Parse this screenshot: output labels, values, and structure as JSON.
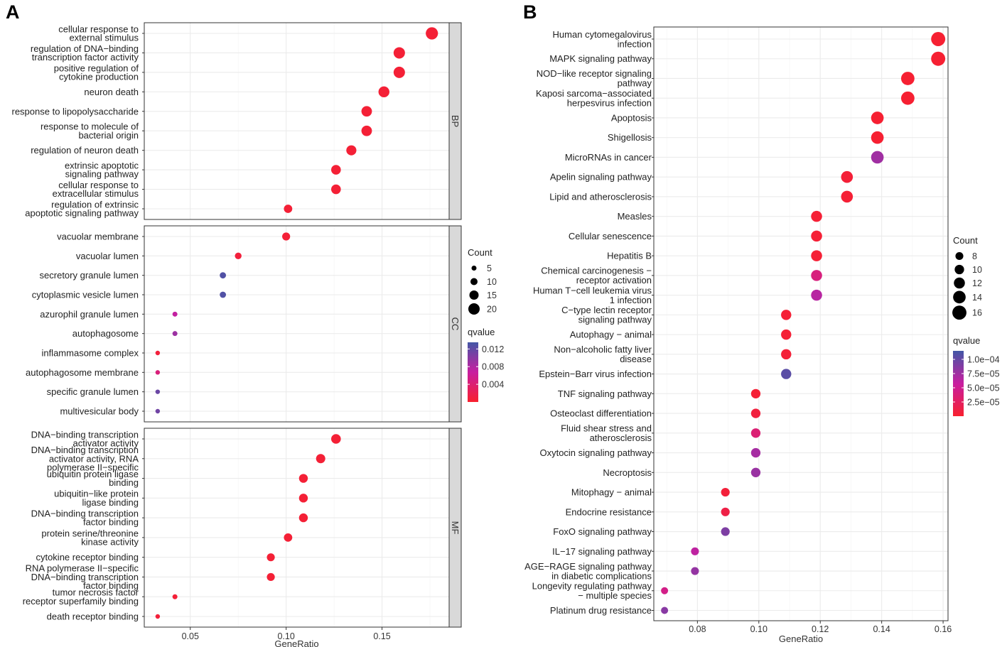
{
  "panels": {
    "A": {
      "letter": "A"
    },
    "B": {
      "letter": "B"
    }
  },
  "chart_data": [
    {
      "type": "scatter",
      "panel": "A",
      "title": "",
      "xlabel": "GeneRatio",
      "ylabel": "",
      "xlim": [
        0.026,
        0.185
      ],
      "xticks": [
        0.05,
        0.1,
        0.15
      ],
      "xtick_labels": [
        "0.05",
        "0.10",
        "0.15"
      ],
      "facets": [
        {
          "name": "BP",
          "terms": [
            {
              "label": [
                "cellular response to",
                "external stimulus"
              ],
              "x": 0.176,
              "count": 22,
              "q": 0.0005
            },
            {
              "label": [
                "regulation of DNA−binding",
                "transcription factor activity"
              ],
              "x": 0.159,
              "count": 20,
              "q": 0.0005
            },
            {
              "label": [
                "positive regulation of",
                "cytokine production"
              ],
              "x": 0.159,
              "count": 20,
              "q": 0.0005
            },
            {
              "label": [
                "neuron death"
              ],
              "x": 0.151,
              "count": 19,
              "q": 0.0005
            },
            {
              "label": [
                "response to lipopolysaccharide"
              ],
              "x": 0.142,
              "count": 18,
              "q": 0.0005
            },
            {
              "label": [
                "response to molecule of",
                "bacterial origin"
              ],
              "x": 0.142,
              "count": 18,
              "q": 0.0005
            },
            {
              "label": [
                "regulation of neuron death"
              ],
              "x": 0.134,
              "count": 17,
              "q": 0.0005
            },
            {
              "label": [
                "extrinsic apoptotic",
                "signaling pathway"
              ],
              "x": 0.126,
              "count": 16,
              "q": 0.0005
            },
            {
              "label": [
                "cellular response to",
                "extracellular stimulus"
              ],
              "x": 0.126,
              "count": 16,
              "q": 0.0005
            },
            {
              "label": [
                "regulation of extrinsic",
                "apoptotic signaling pathway"
              ],
              "x": 0.101,
              "count": 13,
              "q": 0.0005
            }
          ]
        },
        {
          "name": "CC",
          "terms": [
            {
              "label": [
                "vacuolar membrane"
              ],
              "x": 0.1,
              "count": 12,
              "q": 0.0006
            },
            {
              "label": [
                "vacuolar lumen"
              ],
              "x": 0.075,
              "count": 9,
              "q": 0.0008
            },
            {
              "label": [
                "secretory granule lumen"
              ],
              "x": 0.067,
              "count": 8,
              "q": 0.0128
            },
            {
              "label": [
                "cytoplasmic vesicle lumen"
              ],
              "x": 0.067,
              "count": 8,
              "q": 0.0128
            },
            {
              "label": [
                "azurophil granule lumen"
              ],
              "x": 0.042,
              "count": 5,
              "q": 0.007
            },
            {
              "label": [
                "autophagosome"
              ],
              "x": 0.042,
              "count": 5,
              "q": 0.009
            },
            {
              "label": [
                "inflammasome complex"
              ],
              "x": 0.033,
              "count": 4,
              "q": 0.0008
            },
            {
              "label": [
                "autophagosome membrane"
              ],
              "x": 0.033,
              "count": 4,
              "q": 0.0045
            },
            {
              "label": [
                "specific granule lumen"
              ],
              "x": 0.033,
              "count": 4,
              "q": 0.0115
            },
            {
              "label": [
                "multivesicular body"
              ],
              "x": 0.033,
              "count": 4,
              "q": 0.0112
            }
          ]
        },
        {
          "name": "MF",
          "terms": [
            {
              "label": [
                "DNA−binding transcription",
                "activator activity"
              ],
              "x": 0.126,
              "count": 16,
              "q": 0.0005
            },
            {
              "label": [
                "DNA−binding transcription",
                "activator activity, RNA",
                "polymerase II−specific"
              ],
              "x": 0.118,
              "count": 15,
              "q": 0.0005
            },
            {
              "label": [
                "ubiquitin protein ligase",
                "binding"
              ],
              "x": 0.109,
              "count": 14,
              "q": 0.0005
            },
            {
              "label": [
                "ubiquitin−like protein",
                "ligase binding"
              ],
              "x": 0.109,
              "count": 14,
              "q": 0.0005
            },
            {
              "label": [
                "DNA−binding transcription",
                "factor binding"
              ],
              "x": 0.109,
              "count": 14,
              "q": 0.0005
            },
            {
              "label": [
                "protein serine/threonine",
                "kinase activity"
              ],
              "x": 0.101,
              "count": 13,
              "q": 0.0005
            },
            {
              "label": [
                "cytokine receptor binding"
              ],
              "x": 0.092,
              "count": 12,
              "q": 0.0005
            },
            {
              "label": [
                "RNA polymerase II−specific",
                "DNA−binding transcription",
                "factor binding"
              ],
              "x": 0.092,
              "count": 12,
              "q": 0.0005
            },
            {
              "label": [
                "tumor necrosis factor",
                "receptor superfamily binding"
              ],
              "x": 0.042,
              "count": 5,
              "q": 0.0006
            },
            {
              "label": [
                "death receptor binding"
              ],
              "x": 0.033,
              "count": 4,
              "q": 0.0007
            }
          ]
        }
      ],
      "size_legend": {
        "title": "Count",
        "breaks": [
          5,
          10,
          15,
          20
        ],
        "labels": [
          "5",
          "10",
          "15",
          "20"
        ]
      },
      "color_legend": {
        "title": "qvalue",
        "min": 0.0,
        "max": 0.0135,
        "breaks": [
          0.004,
          0.008,
          0.012
        ],
        "labels": [
          "0.004",
          "0.008",
          "0.012"
        ],
        "low_color": "#f8202e",
        "mid_color": "#c81ea0",
        "high_color": "#4357a6"
      }
    },
    {
      "type": "scatter",
      "panel": "B",
      "title": "",
      "xlabel": "GeneRatio",
      "ylabel": "",
      "xlim": [
        0.0658,
        0.1616
      ],
      "xticks": [
        0.08,
        0.1,
        0.12,
        0.14,
        0.16
      ],
      "xtick_labels": [
        "0.08",
        "0.10",
        "0.12",
        "0.14",
        "0.16"
      ],
      "terms": [
        {
          "label": [
            "Human cytomegalovirus",
            "infection"
          ],
          "x": 0.1584,
          "count": 16,
          "q": 2e-06
        },
        {
          "label": [
            "MAPK signaling pathway"
          ],
          "x": 0.1584,
          "count": 16,
          "q": 2e-06
        },
        {
          "label": [
            "NOD−like receptor signaling",
            "pathway"
          ],
          "x": 0.1485,
          "count": 15,
          "q": 2e-06
        },
        {
          "label": [
            "Kaposi sarcoma−associated",
            "herpesvirus infection"
          ],
          "x": 0.1485,
          "count": 15,
          "q": 2e-06
        },
        {
          "label": [
            "Apoptosis"
          ],
          "x": 0.1386,
          "count": 14,
          "q": 2e-06
        },
        {
          "label": [
            "Shigellosis"
          ],
          "x": 0.1386,
          "count": 14,
          "q": 2e-06
        },
        {
          "label": [
            "MicroRNAs in cancer"
          ],
          "x": 0.1386,
          "count": 14,
          "q": 7.5e-05
        },
        {
          "label": [
            "Apelin signaling pathway"
          ],
          "x": 0.1287,
          "count": 13,
          "q": 5e-06
        },
        {
          "label": [
            "Lipid and atherosclerosis"
          ],
          "x": 0.1287,
          "count": 13,
          "q": 4e-06
        },
        {
          "label": [
            "Measles"
          ],
          "x": 0.1188,
          "count": 12,
          "q": 4e-06
        },
        {
          "label": [
            "Cellular senescence"
          ],
          "x": 0.1188,
          "count": 12,
          "q": 4e-06
        },
        {
          "label": [
            "Hepatitis B"
          ],
          "x": 0.1188,
          "count": 12,
          "q": 4e-06
        },
        {
          "label": [
            "Chemical carcinogenesis −",
            "receptor activation"
          ],
          "x": 0.1188,
          "count": 12,
          "q": 4e-05
        },
        {
          "label": [
            "Human T−cell leukemia virus",
            "1 infection"
          ],
          "x": 0.1188,
          "count": 12,
          "q": 6.5e-05
        },
        {
          "label": [
            "C−type lectin receptor",
            "signaling pathway"
          ],
          "x": 0.1089,
          "count": 11,
          "q": 4e-06
        },
        {
          "label": [
            "Autophagy − animal"
          ],
          "x": 0.1089,
          "count": 11,
          "q": 4e-06
        },
        {
          "label": [
            "Non−alcoholic fatty liver",
            "disease"
          ],
          "x": 0.1089,
          "count": 11,
          "q": 5e-06
        },
        {
          "label": [
            "Epstein−Barr virus infection"
          ],
          "x": 0.1089,
          "count": 11,
          "q": 0.000105
        },
        {
          "label": [
            "TNF signaling pathway"
          ],
          "x": 0.099,
          "count": 10,
          "q": 4e-06
        },
        {
          "label": [
            "Osteoclast differentiation"
          ],
          "x": 0.099,
          "count": 10,
          "q": 8e-06
        },
        {
          "label": [
            "Fluid shear stress and",
            "atherosclerosis"
          ],
          "x": 0.099,
          "count": 10,
          "q": 3.5e-05
        },
        {
          "label": [
            "Oxytocin signaling pathway"
          ],
          "x": 0.099,
          "count": 10,
          "q": 7.2e-05
        },
        {
          "label": [
            "Necroptosis"
          ],
          "x": 0.099,
          "count": 10,
          "q": 7.8e-05
        },
        {
          "label": [
            "Mitophagy − animal"
          ],
          "x": 0.0891,
          "count": 9,
          "q": 6e-06
        },
        {
          "label": [
            "Endocrine resistance"
          ],
          "x": 0.0891,
          "count": 9,
          "q": 1.2e-05
        },
        {
          "label": [
            "FoxO signaling pathway"
          ],
          "x": 0.0891,
          "count": 9,
          "q": 9e-05
        },
        {
          "label": [
            "IL−17 signaling pathway"
          ],
          "x": 0.0792,
          "count": 8,
          "q": 6.2e-05
        },
        {
          "label": [
            "AGE−RAGE signaling pathway",
            "in diabetic complications"
          ],
          "x": 0.0792,
          "count": 8,
          "q": 8e-05
        },
        {
          "label": [
            "Longevity regulating pathway",
            "− multiple species"
          ],
          "x": 0.0693,
          "count": 7,
          "q": 4.5e-05
        },
        {
          "label": [
            "Platinum drug resistance"
          ],
          "x": 0.0693,
          "count": 7,
          "q": 8.5e-05
        }
      ],
      "size_legend": {
        "title": "Count",
        "breaks": [
          8,
          10,
          12,
          14,
          16
        ],
        "labels": [
          "8",
          "10",
          "12",
          "14",
          "16"
        ]
      },
      "color_legend": {
        "title": "qvalue",
        "min": 0.0,
        "max": 0.000115,
        "breaks": [
          2.5e-05,
          5e-05,
          7.5e-05,
          0.0001
        ],
        "labels": [
          "2.5e−05",
          "5.0e−05",
          "7.5e−05",
          "1.0e−04"
        ],
        "low_color": "#f8202e",
        "mid_color": "#c81ea0",
        "high_color": "#4357a6"
      }
    }
  ]
}
